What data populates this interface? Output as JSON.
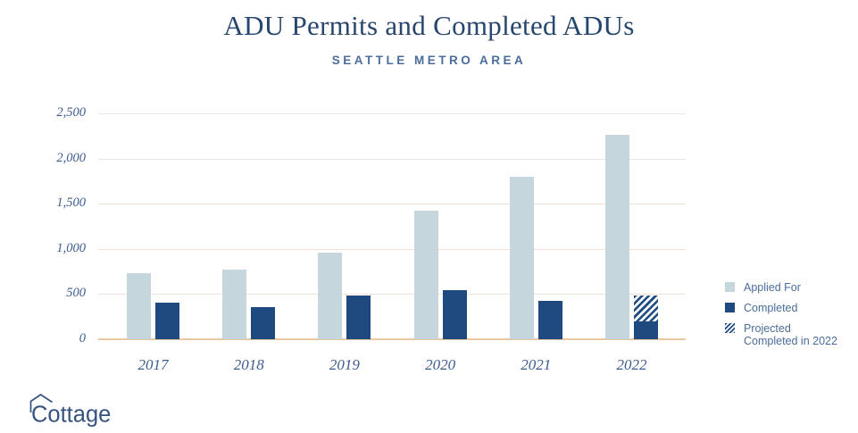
{
  "header": {
    "title": "ADU Permits and Completed ADUs",
    "subtitle": "SEATTLE METRO AREA"
  },
  "colors": {
    "applied": "#c5d6dc",
    "completed": "#1f4a80",
    "title": "#27476e",
    "subtitle": "#4a6d9c",
    "axis_label": "#3d5c90",
    "legend_text": "#4a6d9c",
    "gridline_upper": "#eae8e7",
    "gridline_lower": "#f4e0d5",
    "baseline": "#e9c7a0",
    "logo": "#35537e"
  },
  "chart_data": {
    "type": "bar",
    "title": "ADU Permits and Completed ADUs",
    "subtitle": "SEATTLE METRO AREA",
    "categories": [
      "2017",
      "2018",
      "2019",
      "2020",
      "2021",
      "2022"
    ],
    "series": [
      {
        "name": "Applied For",
        "values": [
          730,
          770,
          960,
          1420,
          1800,
          2260
        ]
      },
      {
        "name": "Completed",
        "values": [
          410,
          360,
          480,
          540,
          420,
          200
        ]
      },
      {
        "name": "Projected Completed in 2022",
        "values": [
          0,
          0,
          0,
          0,
          0,
          280
        ],
        "style": "hatched",
        "note": "stacked on top of Completed bar for 2022 only"
      }
    ],
    "xlabel": "",
    "ylabel": "",
    "ylim": [
      0,
      2500
    ],
    "yticks": [
      {
        "value": 2500,
        "label": "2,500"
      },
      {
        "value": 2000,
        "label": "2,000"
      },
      {
        "value": 1500,
        "label": "1,500"
      },
      {
        "value": 1000,
        "label": "1,000"
      },
      {
        "value": 500,
        "label": "500"
      },
      {
        "value": 0,
        "label": "0"
      }
    ],
    "grid": true,
    "legend_position": "right"
  },
  "legend": {
    "items": [
      {
        "swatch": "applied",
        "lines": [
          "Applied For"
        ]
      },
      {
        "swatch": "completed",
        "lines": [
          "Completed"
        ]
      },
      {
        "swatch": "hatch",
        "lines": [
          "Projected",
          "Completed in 2022"
        ]
      }
    ]
  },
  "logo": {
    "text": "Cottage"
  }
}
